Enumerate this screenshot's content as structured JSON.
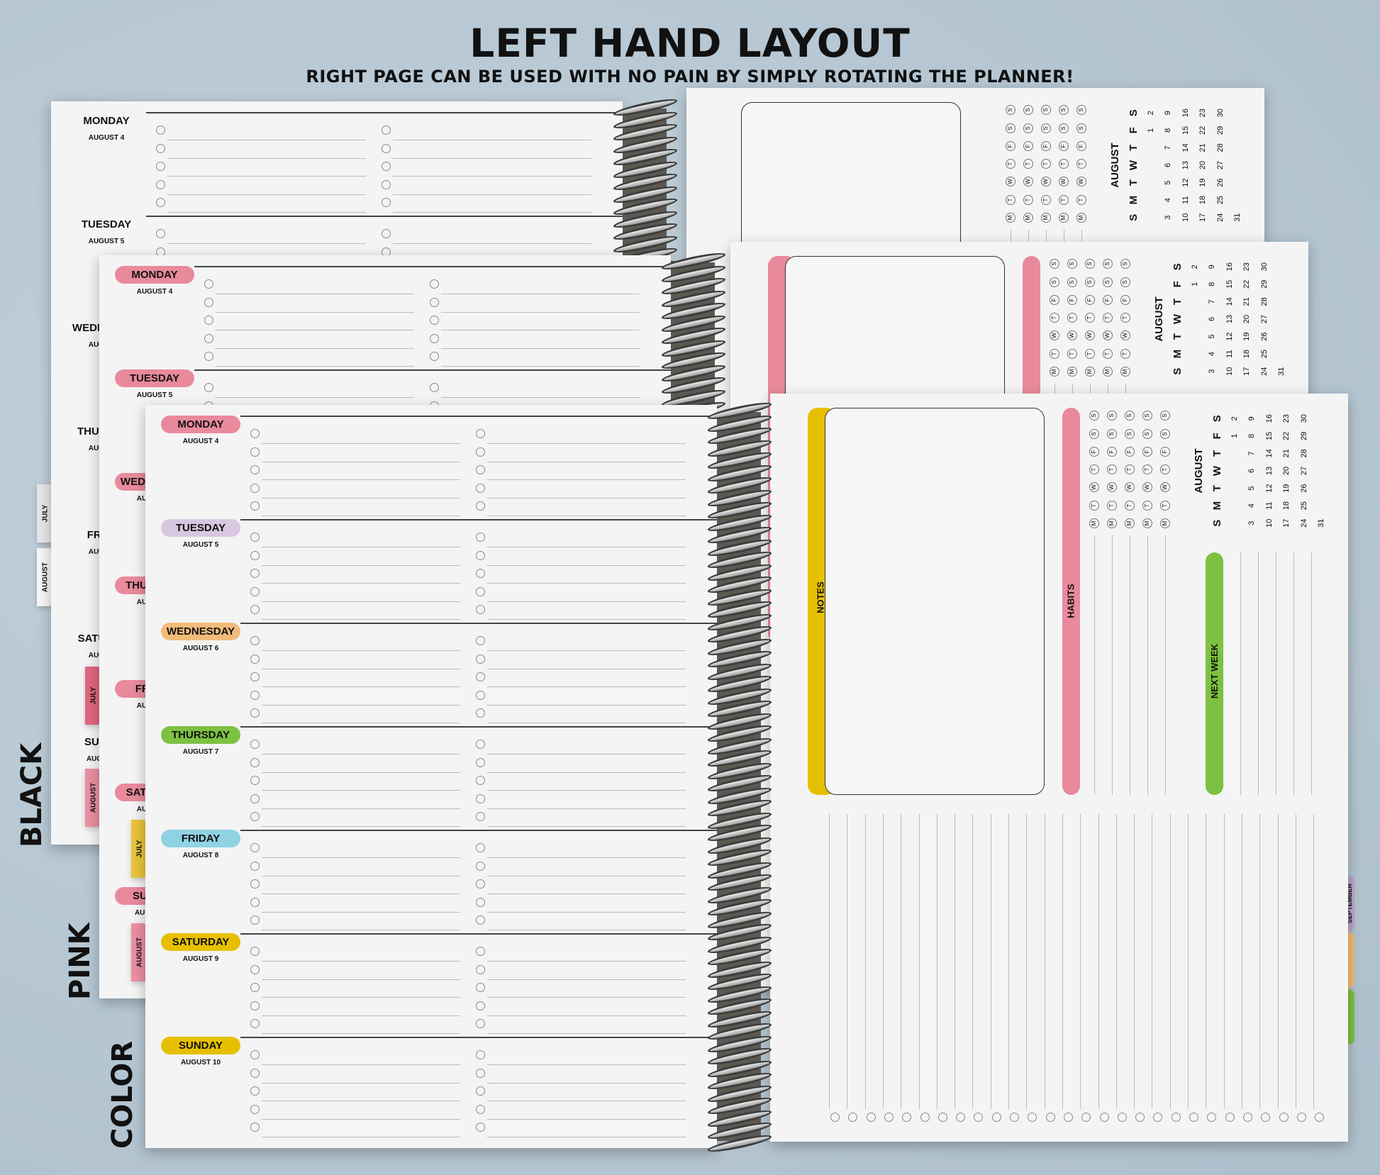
{
  "header": {
    "title": "LEFT HAND LAYOUT",
    "subtitle": "RIGHT PAGE CAN BE USED WITH NO PAIN BY SIMPLY ROTATING THE PLANNER!"
  },
  "planners": [
    {
      "name": "BLACK",
      "pill_colors": [
        "none",
        "none",
        "none",
        "none",
        "none",
        "none",
        "none"
      ],
      "notes_bar_color": "none",
      "habits_bar_color": "none",
      "next_week_color": "none",
      "tabs": [
        {
          "label": "JULY",
          "color": "#e6e6ea"
        },
        {
          "label": "AUGUST",
          "color": "#f7f7f7"
        }
      ]
    },
    {
      "name": "PINK",
      "pill_colors": [
        "#e98a9c",
        "#e98a9c",
        "#e98a9c",
        "#e98a9c",
        "#e98a9c",
        "#e98a9c",
        "#e98a9c"
      ],
      "notes_bar_color": "#e98a9c",
      "habits_bar_color": "#e98a9c",
      "next_week_color": "#e98a9c",
      "tabs": [
        {
          "label": "JULY",
          "color": "#e0667e"
        },
        {
          "label": "AUGUST",
          "color": "#ea8fa2"
        }
      ]
    },
    {
      "name": "COLOR",
      "pill_colors": [
        "#e98a9c",
        "#d9c6e0",
        "#f2bb7a",
        "#7dc142",
        "#8fd3e3",
        "#e6c000",
        "#e6c000"
      ],
      "notes_bar_color": "#e6c000",
      "habits_bar_color": "#e98a9c",
      "next_week_color": "#7dc142",
      "tabs": [
        {
          "label": "JULY",
          "color": "#e8c33a"
        },
        {
          "label": "AUGUST",
          "color": "#ea8fa2"
        }
      ],
      "right_tabs": [
        {
          "label": "SEPTEMBER",
          "color": "#b9a6c6"
        },
        {
          "label": "",
          "color": "#f2bb7a"
        },
        {
          "label": "",
          "color": "#7dc142"
        }
      ]
    }
  ],
  "days": [
    {
      "name": "MONDAY",
      "date": "AUGUST 4"
    },
    {
      "name": "TUESDAY",
      "date": "AUGUST 5"
    },
    {
      "name": "WEDNESDAY",
      "date": "AUGUST 6"
    },
    {
      "name": "THURSDAY",
      "date": "AUGUST 7"
    },
    {
      "name": "FRIDAY",
      "date": "AUGUST 8"
    },
    {
      "name": "SATURDAY",
      "date": "AUGUST 9"
    },
    {
      "name": "SUNDAY",
      "date": "AUGUST 10"
    }
  ],
  "right_page": {
    "notes_label": "NOTES",
    "habits_label": "HABITS",
    "next_week_label": "NEXT WEEK",
    "habit_letters": [
      "M",
      "T",
      "W",
      "T",
      "F",
      "S",
      "S"
    ],
    "calendar": {
      "month": "AUGUST",
      "weekdays": [
        "S",
        "M",
        "T",
        "W",
        "T",
        "F",
        "S"
      ],
      "weeks": [
        [
          "",
          "",
          "",
          "",
          "",
          "1",
          "2"
        ],
        [
          "3",
          "4",
          "5",
          "6",
          "7",
          "8",
          "9"
        ],
        [
          "10",
          "11",
          "12",
          "13",
          "14",
          "15",
          "16"
        ],
        [
          "17",
          "18",
          "19",
          "20",
          "21",
          "22",
          "23"
        ],
        [
          "24",
          "25",
          "26",
          "27",
          "28",
          "29",
          "30"
        ],
        [
          "31",
          "",
          "",
          "",
          "",
          "",
          ""
        ]
      ]
    }
  }
}
